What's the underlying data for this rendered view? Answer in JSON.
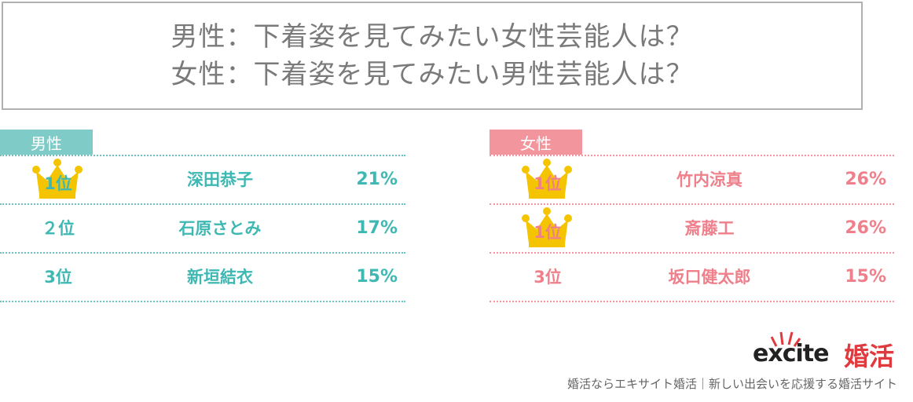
{
  "title": {
    "line1": "男性：下着姿を見てみたい女性芸能人は？",
    "line2": "女性：下着姿を見てみたい男性芸能人は？"
  },
  "male": {
    "label": "男性",
    "rows": [
      {
        "rank": "1位",
        "name": "深田恭子",
        "percent": "21%",
        "crown": true
      },
      {
        "rank": "２位",
        "name": "石原さとみ",
        "percent": "17%",
        "crown": false
      },
      {
        "rank": "3位",
        "name": "新垣結衣",
        "percent": "15%",
        "crown": false
      }
    ]
  },
  "female": {
    "label": "女性",
    "rows": [
      {
        "rank": "1位",
        "name": "竹内涼真",
        "percent": "26%",
        "crown": true
      },
      {
        "rank": "1位",
        "name": "斎藤工",
        "percent": "26%",
        "crown": true
      },
      {
        "rank": "3位",
        "name": "坂口健太郎",
        "percent": "15%",
        "crown": false
      }
    ]
  },
  "colors": {
    "male_accent": "#3fb8b4",
    "female_accent": "#ef7f8a",
    "crown": "#f5c400"
  },
  "logo": {
    "text": "excite",
    "kanji": "婚活"
  },
  "footer": "婚活ならエキサイト婚活｜新しい出会いを応援する婚活サイト"
}
